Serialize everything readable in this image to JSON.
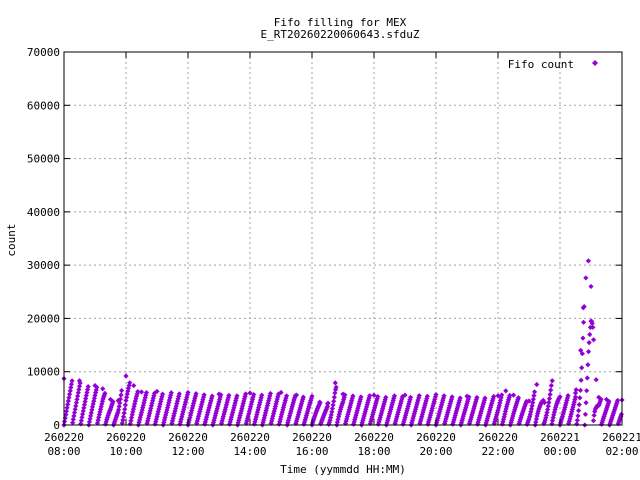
{
  "chart_data": {
    "type": "scatter",
    "title": "Fifo filling for MEX",
    "subtitle": "E_RT20260220060643.sfduZ",
    "xlabel": "Time (yymmdd HH:MM)",
    "ylabel": "count",
    "ylim": [
      0,
      70000
    ],
    "xlim": [
      "260220 08:00",
      "260221 02:00"
    ],
    "y_ticks": [
      "0",
      "10000",
      "20000",
      "30000",
      "40000",
      "50000",
      "60000",
      "70000"
    ],
    "x_ticks": [
      {
        "date": "260220",
        "time": "08:00"
      },
      {
        "date": "260220",
        "time": "10:00"
      },
      {
        "date": "260220",
        "time": "12:00"
      },
      {
        "date": "260220",
        "time": "14:00"
      },
      {
        "date": "260220",
        "time": "16:00"
      },
      {
        "date": "260220",
        "time": "18:00"
      },
      {
        "date": "260220",
        "time": "20:00"
      },
      {
        "date": "260220",
        "time": "22:00"
      },
      {
        "date": "260221",
        "time": "00:00"
      },
      {
        "date": "260221",
        "time": "02:00"
      }
    ],
    "grid": true,
    "legend_position": "top-right",
    "series": [
      {
        "name": "Fifo count",
        "color": "#9400d3",
        "marker": "diamond",
        "points": [
          {
            "x": "260220 08:00",
            "y": 0
          },
          {
            "x": "260220 08:00",
            "y": 8700
          },
          {
            "x": "260220 08:30",
            "y": 8300
          },
          {
            "x": "260220 09:00",
            "y": 7400
          },
          {
            "x": "260220 09:15",
            "y": 6800
          },
          {
            "x": "260220 09:30",
            "y": 4800
          },
          {
            "x": "260220 09:45",
            "y": 4600
          },
          {
            "x": "260220 10:00",
            "y": 9200
          },
          {
            "x": "260220 10:15",
            "y": 7400
          },
          {
            "x": "260220 10:30",
            "y": 6200
          },
          {
            "x": "260220 11:00",
            "y": 6300
          },
          {
            "x": "260220 12:00",
            "y": 6100
          },
          {
            "x": "260220 13:00",
            "y": 5800
          },
          {
            "x": "260220 14:00",
            "y": 6000
          },
          {
            "x": "260220 15:00",
            "y": 6100
          },
          {
            "x": "260220 15:30",
            "y": 5600
          },
          {
            "x": "260220 16:00",
            "y": 5400
          },
          {
            "x": "260220 16:15",
            "y": 4300
          },
          {
            "x": "260220 16:30",
            "y": 4000
          },
          {
            "x": "260220 16:45",
            "y": 7900
          },
          {
            "x": "260220 17:00",
            "y": 5800
          },
          {
            "x": "260220 18:00",
            "y": 5600
          },
          {
            "x": "260220 19:00",
            "y": 5600
          },
          {
            "x": "260220 20:00",
            "y": 5700
          },
          {
            "x": "260220 21:00",
            "y": 5400
          },
          {
            "x": "260220 22:00",
            "y": 5500
          },
          {
            "x": "260220 22:15",
            "y": 6400
          },
          {
            "x": "260220 22:30",
            "y": 5600
          },
          {
            "x": "260220 23:00",
            "y": 4500
          },
          {
            "x": "260220 23:15",
            "y": 7600
          },
          {
            "x": "260220 23:30",
            "y": 4200
          },
          {
            "x": "260220 23:45",
            "y": 8300
          },
          {
            "x": "260221 00:00",
            "y": 5300
          },
          {
            "x": "260221 00:30",
            "y": 6000
          },
          {
            "x": "260221 00:40",
            "y": 14000
          },
          {
            "x": "260221 00:45",
            "y": 22000
          },
          {
            "x": "260221 00:50",
            "y": 27600
          },
          {
            "x": "260221 00:55",
            "y": 30800
          },
          {
            "x": "260221 01:00",
            "y": 26000
          },
          {
            "x": "260221 01:05",
            "y": 16000
          },
          {
            "x": "260221 01:10",
            "y": 8500
          },
          {
            "x": "260221 01:15",
            "y": 5200
          },
          {
            "x": "260221 01:30",
            "y": 4800
          },
          {
            "x": "260221 02:00",
            "y": 4700
          }
        ]
      }
    ]
  }
}
